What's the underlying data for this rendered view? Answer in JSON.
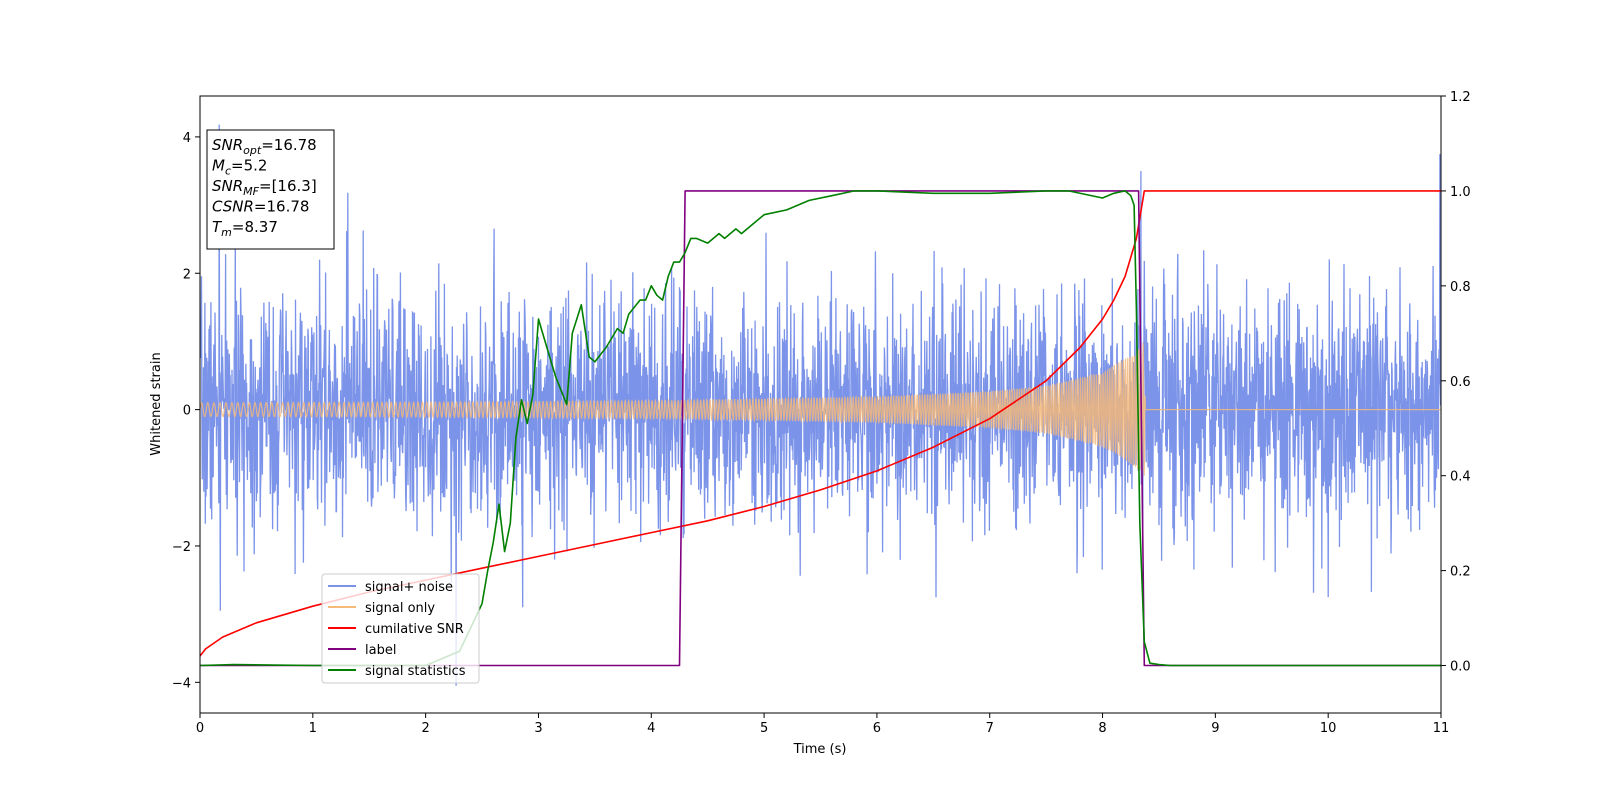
{
  "chart_data": {
    "type": "line",
    "title": "",
    "xlabel": "Time (s)",
    "ylabel": "Whitened strain",
    "ylabel_right": "",
    "xlim": [
      0,
      11
    ],
    "ylim": [
      -4.45,
      4.6
    ],
    "ylim_right": [
      -0.1,
      1.2
    ],
    "x_ticks": [
      0,
      1,
      2,
      3,
      4,
      5,
      6,
      7,
      8,
      9,
      10,
      11
    ],
    "y_ticks": [
      -4,
      -2,
      0,
      2,
      4
    ],
    "y_ticks_right": [
      0.0,
      0.2,
      0.4,
      0.6,
      0.8,
      1.0,
      1.2
    ],
    "grid": false,
    "legend_position": "lower-left",
    "info_box": {
      "lines": [
        {
          "main": "SNR",
          "sub": "opt",
          "rest": "=16.78"
        },
        {
          "main": "M",
          "sub": "c",
          "rest": "=5.2"
        },
        {
          "main": "SNR",
          "sub": "MF",
          "rest": "=[16.3]"
        },
        {
          "main": "CSNR",
          "sub": "",
          "rest": "=16.78"
        },
        {
          "main": "T",
          "sub": "m",
          "rest": "=8.37"
        }
      ]
    },
    "series": [
      {
        "name": "signal+ noise",
        "axis": "left",
        "color": "#7b93e8",
        "kind": "noise",
        "description_values": {
          "std": 0.85,
          "min": -4.05,
          "max": 4.18,
          "sample_rate_hz": 300,
          "seed": 7
        },
        "peaks": [
          [
            0.17,
            4.18
          ],
          [
            1.31,
            3.18
          ],
          [
            8.34,
            3.5
          ],
          [
            10.99,
            3.75
          ],
          [
            0.18,
            -2.95
          ],
          [
            2.27,
            -4.05
          ],
          [
            2.86,
            -2.9
          ],
          [
            10.0,
            -2.75
          ]
        ]
      },
      {
        "name": "signal only",
        "axis": "left",
        "color": "#f5b97a",
        "kind": "chirp",
        "amplitude_points": [
          [
            0,
            0.1
          ],
          [
            2,
            0.11
          ],
          [
            4,
            0.13
          ],
          [
            6,
            0.19
          ],
          [
            7,
            0.27
          ],
          [
            7.5,
            0.35
          ],
          [
            8.0,
            0.55
          ],
          [
            8.3,
            0.85
          ],
          [
            8.37,
            1.0
          ],
          [
            8.38,
            0.0
          ],
          [
            11,
            0.0
          ]
        ]
      },
      {
        "name": "cumilative SNR",
        "axis": "right",
        "color": "#ff0000",
        "x": [
          0,
          0.05,
          0.2,
          0.5,
          1.0,
          1.5,
          2.0,
          2.5,
          3.0,
          3.5,
          4.0,
          4.5,
          5.0,
          5.5,
          6.0,
          6.5,
          7.0,
          7.5,
          7.8,
          8.0,
          8.1,
          8.2,
          8.3,
          8.37,
          8.4,
          11
        ],
        "y": [
          0.02,
          0.035,
          0.06,
          0.09,
          0.125,
          0.155,
          0.18,
          0.205,
          0.23,
          0.255,
          0.28,
          0.305,
          0.335,
          0.37,
          0.41,
          0.46,
          0.52,
          0.6,
          0.67,
          0.73,
          0.77,
          0.82,
          0.9,
          1.0,
          1.0,
          1.0
        ]
      },
      {
        "name": "label",
        "axis": "right",
        "color": "#800080",
        "x": [
          0,
          4.25,
          4.3,
          8.32,
          8.37,
          11
        ],
        "y": [
          0,
          0,
          1,
          1,
          0,
          0
        ]
      },
      {
        "name": "signal statistics",
        "axis": "right",
        "color": "#008000",
        "x": [
          0,
          0.3,
          1.0,
          2.0,
          2.2,
          2.3,
          2.4,
          2.5,
          2.55,
          2.6,
          2.65,
          2.7,
          2.75,
          2.8,
          2.85,
          2.9,
          2.95,
          3.0,
          3.05,
          3.15,
          3.25,
          3.3,
          3.38,
          3.45,
          3.5,
          3.6,
          3.7,
          3.75,
          3.8,
          3.9,
          3.95,
          4.0,
          4.05,
          4.1,
          4.15,
          4.2,
          4.25,
          4.3,
          4.35,
          4.4,
          4.5,
          4.6,
          4.65,
          4.75,
          4.8,
          4.9,
          5.0,
          5.2,
          5.4,
          5.6,
          5.8,
          6.0,
          6.5,
          7.0,
          7.5,
          7.7,
          8.0,
          8.1,
          8.2,
          8.25,
          8.28,
          8.3,
          8.33,
          8.37,
          8.42,
          8.5,
          8.6,
          8.8,
          11
        ],
        "y": [
          0,
          0.002,
          0,
          0,
          0.02,
          0.03,
          0.08,
          0.13,
          0.2,
          0.26,
          0.34,
          0.24,
          0.3,
          0.48,
          0.56,
          0.51,
          0.57,
          0.73,
          0.69,
          0.61,
          0.55,
          0.7,
          0.76,
          0.65,
          0.64,
          0.67,
          0.71,
          0.7,
          0.74,
          0.77,
          0.77,
          0.8,
          0.78,
          0.77,
          0.82,
          0.85,
          0.85,
          0.87,
          0.9,
          0.9,
          0.89,
          0.91,
          0.9,
          0.92,
          0.91,
          0.93,
          0.95,
          0.96,
          0.98,
          0.99,
          1.0,
          1.0,
          0.995,
          0.995,
          1.0,
          1.0,
          0.985,
          0.995,
          1.0,
          0.99,
          0.97,
          0.75,
          0.3,
          0.05,
          0.005,
          0.002,
          0,
          0,
          0
        ]
      }
    ]
  }
}
